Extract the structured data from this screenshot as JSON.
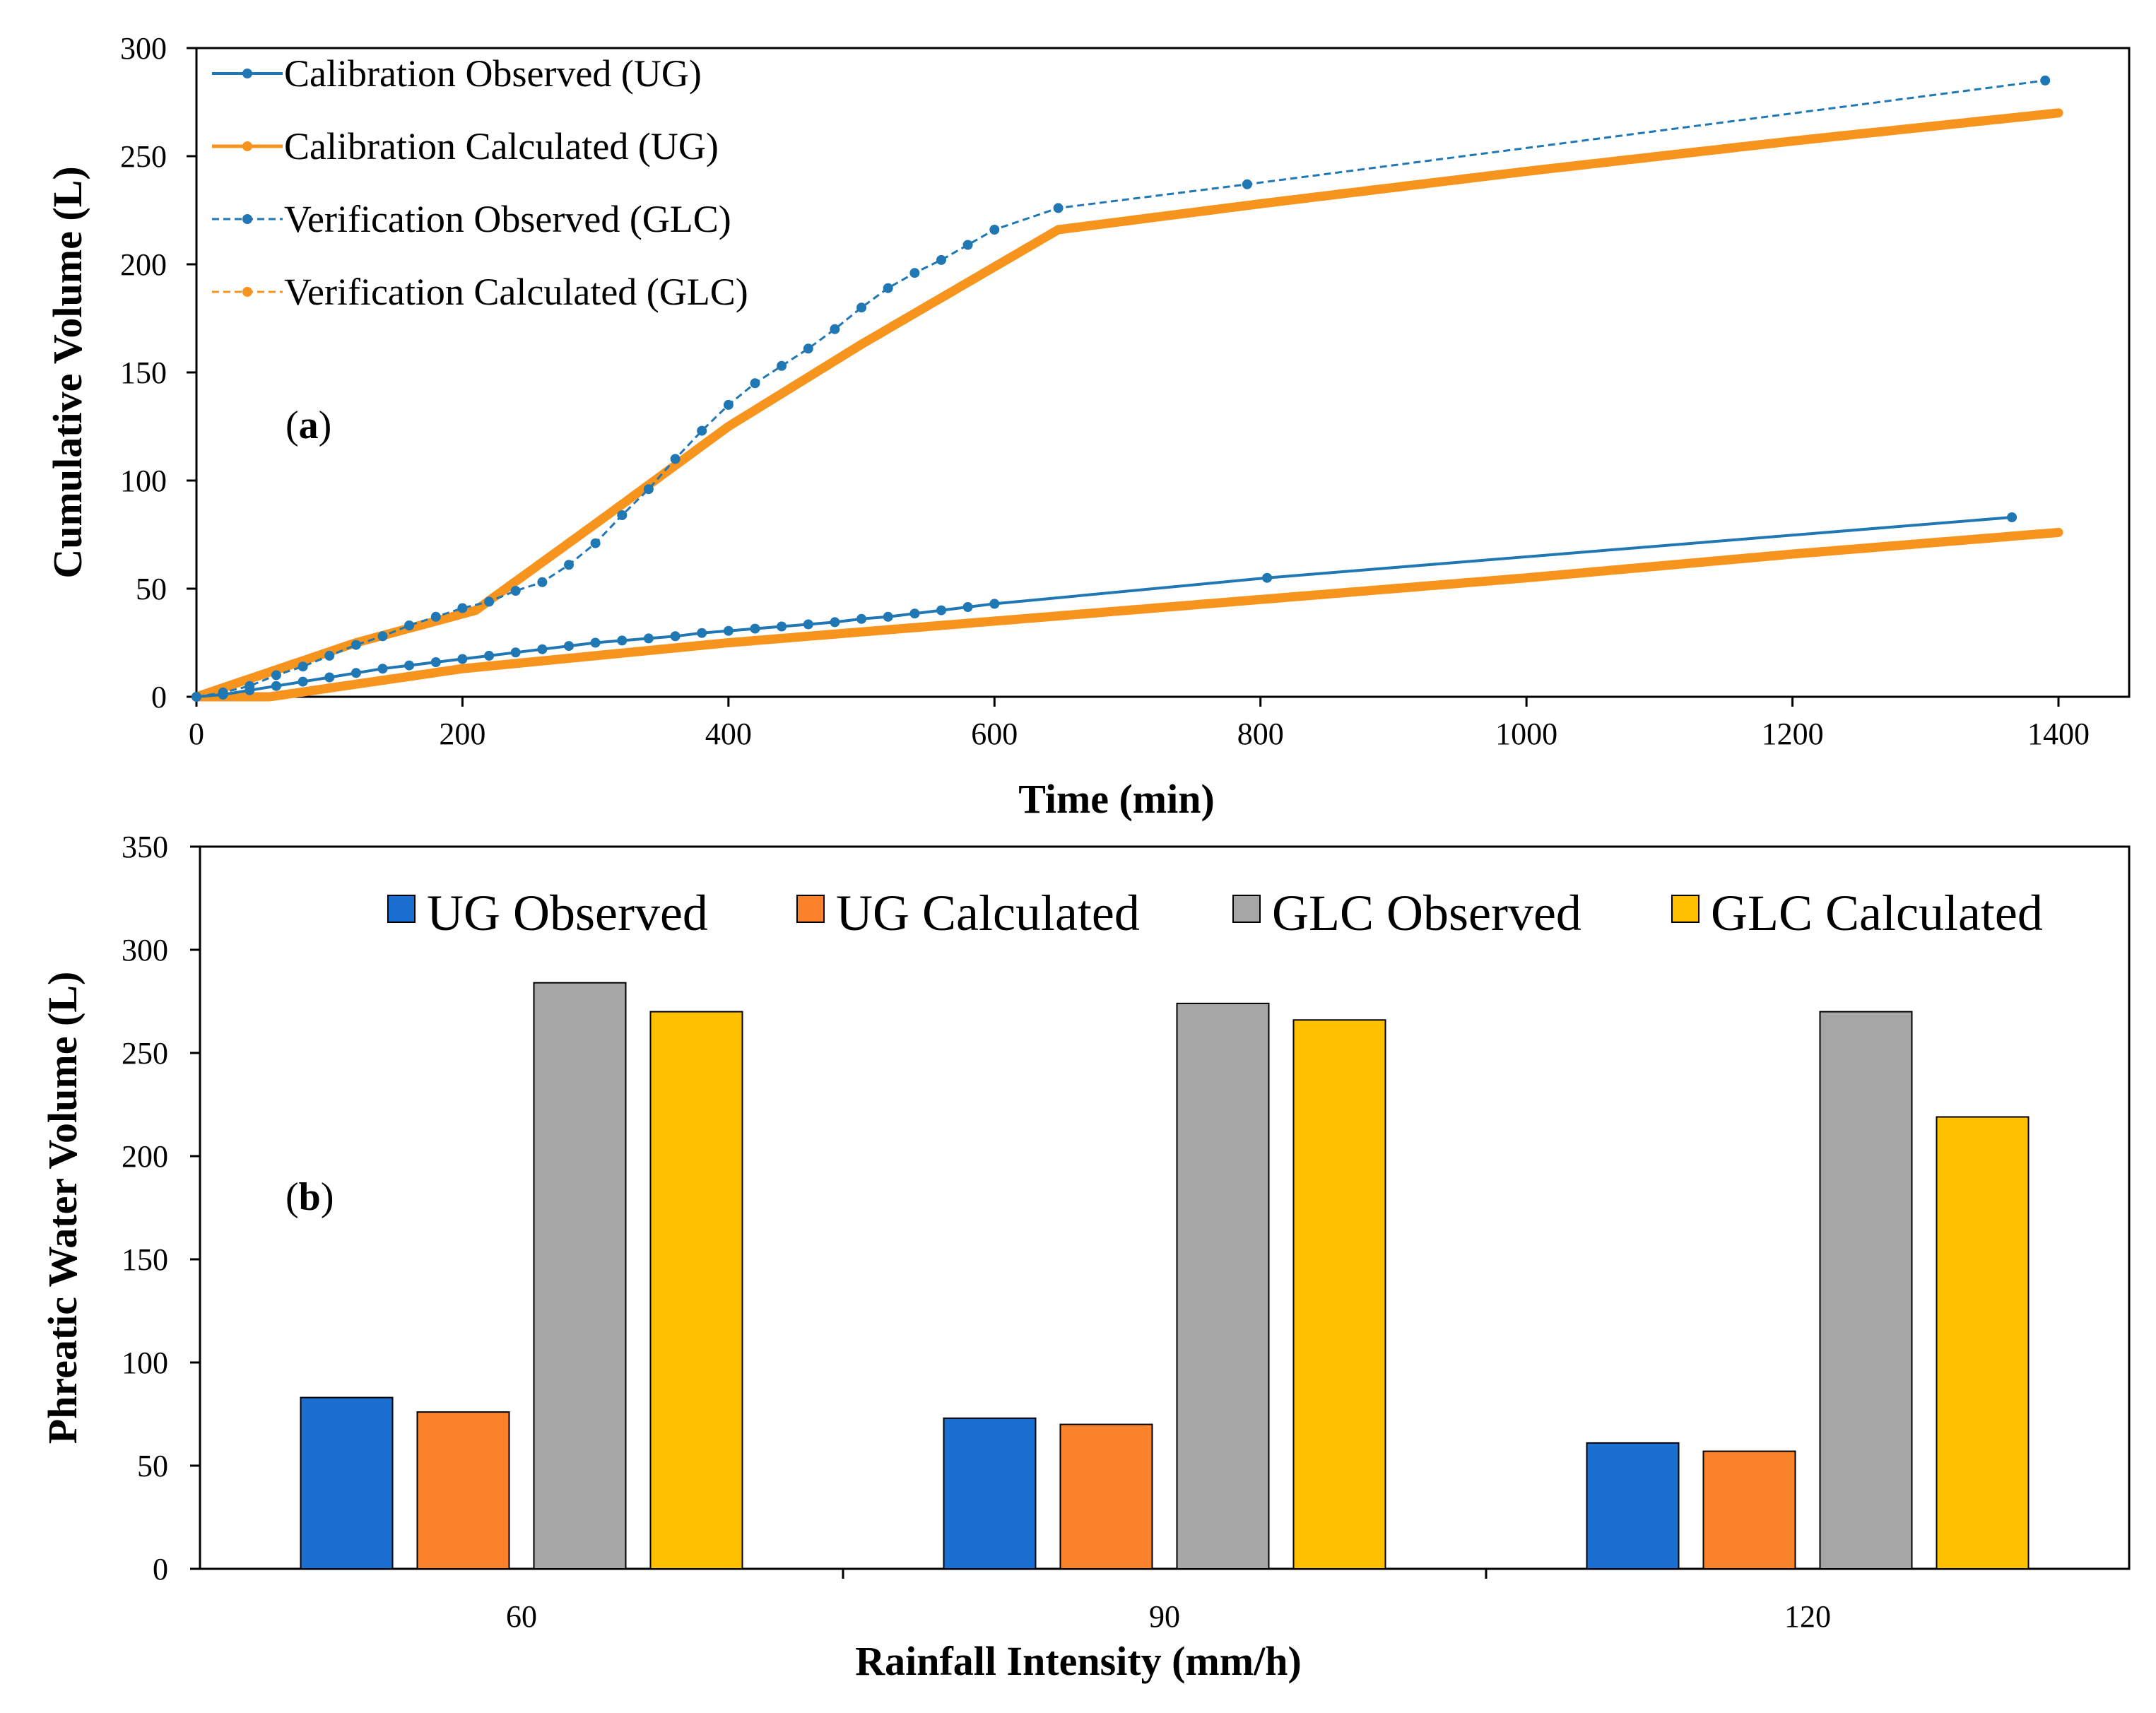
{
  "chart_data": [
    {
      "type": "line",
      "panel_label": "(a)",
      "panel_label_letter": "a",
      "xlabel": "Time (min)",
      "ylabel": "Cumulative Volume (L)",
      "xlim": [
        0,
        1400
      ],
      "ylim": [
        0,
        300
      ],
      "xticks": [
        0,
        200,
        400,
        600,
        800,
        1000,
        1200,
        1400
      ],
      "yticks": [
        0,
        50,
        100,
        150,
        200,
        250,
        300
      ],
      "legend_position": "top-left",
      "series": [
        {
          "name": "Calibration Observed (UG)",
          "color": "#1f77b4",
          "style": "solid-markers",
          "points": [
            [
              0,
              0
            ],
            [
              20,
              1
            ],
            [
              40,
              3
            ],
            [
              60,
              5
            ],
            [
              80,
              7
            ],
            [
              100,
              9
            ],
            [
              120,
              11
            ],
            [
              140,
              13
            ],
            [
              160,
              14.5
            ],
            [
              180,
              16
            ],
            [
              200,
              17.5
            ],
            [
              220,
              19
            ],
            [
              240,
              20.5
            ],
            [
              260,
              22
            ],
            [
              280,
              23.5
            ],
            [
              300,
              25
            ],
            [
              320,
              26
            ],
            [
              340,
              27
            ],
            [
              360,
              28
            ],
            [
              380,
              29.5
            ],
            [
              400,
              30.5
            ],
            [
              420,
              31.5
            ],
            [
              440,
              32.5
            ],
            [
              460,
              33.5
            ],
            [
              480,
              34.5
            ],
            [
              500,
              36
            ],
            [
              520,
              37
            ],
            [
              540,
              38.5
            ],
            [
              560,
              40
            ],
            [
              580,
              41.5
            ],
            [
              600,
              43
            ],
            [
              805,
              55
            ],
            [
              1365,
              83
            ]
          ]
        },
        {
          "name": "Calibration Calculated (UG)",
          "color": "#f7941d",
          "style": "thick",
          "points": [
            [
              0,
              0
            ],
            [
              55,
              0
            ],
            [
              200,
              13
            ],
            [
              400,
              25
            ],
            [
              600,
              35
            ],
            [
              800,
              45
            ],
            [
              1000,
              55
            ],
            [
              1200,
              66
            ],
            [
              1400,
              76
            ]
          ]
        },
        {
          "name": "Verification Observed (GLC)",
          "color": "#1f77b4",
          "style": "dashed-markers",
          "points": [
            [
              0,
              0
            ],
            [
              20,
              2
            ],
            [
              40,
              5
            ],
            [
              60,
              10
            ],
            [
              80,
              14
            ],
            [
              100,
              19
            ],
            [
              120,
              24
            ],
            [
              140,
              28
            ],
            [
              160,
              33
            ],
            [
              180,
              37
            ],
            [
              200,
              41
            ],
            [
              220,
              44
            ],
            [
              240,
              49
            ],
            [
              260,
              53
            ],
            [
              280,
              61
            ],
            [
              300,
              71
            ],
            [
              320,
              84
            ],
            [
              340,
              96
            ],
            [
              360,
              110
            ],
            [
              380,
              123
            ],
            [
              400,
              135
            ],
            [
              420,
              145
            ],
            [
              440,
              153
            ],
            [
              460,
              161
            ],
            [
              480,
              170
            ],
            [
              500,
              180
            ],
            [
              520,
              189
            ],
            [
              540,
              196
            ],
            [
              560,
              202
            ],
            [
              580,
              209
            ],
            [
              600,
              216
            ],
            [
              648,
              226
            ],
            [
              790,
              237
            ],
            [
              1390,
              285
            ]
          ]
        },
        {
          "name": "Verification Calculated (GLC)",
          "color": "#f7941d",
          "style": "thick",
          "points": [
            [
              0,
              0
            ],
            [
              120,
              25
            ],
            [
              210,
              40
            ],
            [
              300,
              80
            ],
            [
              400,
              125
            ],
            [
              500,
              163
            ],
            [
              648,
              216
            ],
            [
              800,
              228
            ],
            [
              1000,
              243
            ],
            [
              1200,
              257
            ],
            [
              1400,
              270
            ]
          ]
        }
      ]
    },
    {
      "type": "bar",
      "panel_label": "(b)",
      "panel_label_letter": "b",
      "xlabel": "Rainfall Intensity (mm/h)",
      "ylabel": "Phreatic Water Volume (L)",
      "categories": [
        "60",
        "90",
        "120"
      ],
      "ylim": [
        0,
        350
      ],
      "yticks": [
        0,
        50,
        100,
        150,
        200,
        250,
        300,
        350
      ],
      "legend_position": "top",
      "series": [
        {
          "name": "UG Observed",
          "color": "#1a6fd0",
          "values": [
            83,
            73,
            61
          ]
        },
        {
          "name": "UG Calculated",
          "color": "#f9822b",
          "values": [
            76,
            70,
            57
          ]
        },
        {
          "name": "GLC Observed",
          "color": "#a6a6a6",
          "values": [
            284,
            274,
            270
          ]
        },
        {
          "name": "GLC Calculated",
          "color": "#ffc000",
          "values": [
            270,
            266,
            219
          ]
        }
      ]
    }
  ]
}
